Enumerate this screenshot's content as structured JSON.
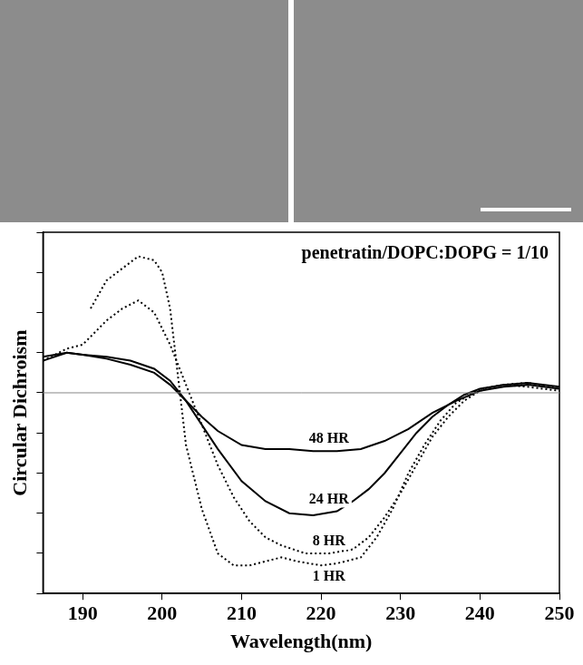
{
  "chart_data": {
    "type": "line",
    "title": "penetratin/DOPC:DOPG = 1/10",
    "x_label": "Wavelength(nm)",
    "y_label": "Circular Dichroism",
    "xlim": [
      185,
      250
    ],
    "xticks": [
      190,
      200,
      210,
      220,
      230,
      240,
      250
    ],
    "ylim": [
      -5,
      4
    ],
    "yticks": [
      -5,
      -4,
      -3,
      -2,
      -1,
      0,
      1,
      2,
      3,
      4
    ],
    "tick_labels": "x",
    "grid": false,
    "zero_line": 0,
    "series": [
      {
        "name": "1 HR",
        "color": "#000000",
        "line_style": "dotted",
        "x": [
          191,
          193,
          195,
          197,
          199,
          200,
          201,
          202,
          203,
          205,
          207,
          209,
          211,
          213,
          215,
          217,
          220,
          222,
          225,
          227,
          229,
          231,
          233,
          235,
          237,
          240,
          243,
          246,
          250
        ],
        "values": [
          2.1,
          2.8,
          3.1,
          3.4,
          3.3,
          3.0,
          2.1,
          0.4,
          -1.3,
          -2.9,
          -4.0,
          -4.3,
          -4.3,
          -4.2,
          -4.1,
          -4.2,
          -4.3,
          -4.25,
          -4.1,
          -3.6,
          -2.9,
          -2.0,
          -1.3,
          -0.7,
          -0.25,
          0.1,
          0.2,
          0.15,
          0.05
        ]
      },
      {
        "name": "8 HR",
        "color": "#000000",
        "line_style": "dotted",
        "x": [
          185,
          188,
          190,
          193,
          195,
          197,
          199,
          201,
          203,
          205,
          207,
          209,
          211,
          213,
          215,
          218,
          221,
          224,
          226,
          228,
          230,
          232,
          234,
          236,
          238,
          240,
          243,
          246,
          250
        ],
        "values": [
          0.8,
          1.1,
          1.2,
          1.8,
          2.1,
          2.3,
          2.0,
          1.2,
          0.2,
          -0.8,
          -1.8,
          -2.6,
          -3.2,
          -3.6,
          -3.8,
          -4.0,
          -4.0,
          -3.9,
          -3.6,
          -3.1,
          -2.5,
          -1.8,
          -1.1,
          -0.6,
          -0.2,
          0.05,
          0.2,
          0.25,
          0.1
        ]
      },
      {
        "name": "24 HR",
        "color": "#000000",
        "line_style": "solid",
        "x": [
          185,
          188,
          190,
          193,
          196,
          199,
          201,
          203,
          205,
          207,
          210,
          213,
          216,
          219,
          222,
          224,
          226,
          228,
          230,
          232,
          234,
          236,
          238,
          240,
          243,
          246,
          250
        ],
        "values": [
          0.8,
          1.0,
          0.95,
          0.9,
          0.8,
          0.6,
          0.3,
          -0.2,
          -0.8,
          -1.4,
          -2.2,
          -2.7,
          -3.0,
          -3.05,
          -2.95,
          -2.7,
          -2.4,
          -2.0,
          -1.5,
          -1.0,
          -0.6,
          -0.3,
          -0.05,
          0.1,
          0.2,
          0.25,
          0.15
        ]
      },
      {
        "name": "48 HR",
        "color": "#000000",
        "line_style": "solid",
        "x": [
          185,
          188,
          190,
          193,
          196,
          199,
          201,
          203,
          205,
          207,
          210,
          213,
          216,
          219,
          222,
          225,
          228,
          231,
          234,
          237,
          240,
          243,
          246,
          250
        ],
        "values": [
          0.9,
          1.0,
          0.95,
          0.85,
          0.7,
          0.5,
          0.2,
          -0.2,
          -0.6,
          -0.95,
          -1.3,
          -1.4,
          -1.4,
          -1.45,
          -1.45,
          -1.4,
          -1.2,
          -0.9,
          -0.5,
          -0.2,
          0.05,
          0.15,
          0.2,
          0.1
        ]
      }
    ]
  }
}
